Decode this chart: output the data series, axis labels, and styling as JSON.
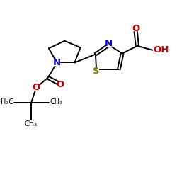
{
  "bg_color": "#ffffff",
  "bond_color": "#000000",
  "N_color": "#0000cc",
  "O_color": "#cc0000",
  "S_color": "#808000",
  "bond_lw": 1.4,
  "font_size": 8.5,
  "fig_size": [
    2.5,
    2.5
  ],
  "dpi": 100,
  "xlim": [
    0,
    10
  ],
  "ylim": [
    0,
    10
  ]
}
